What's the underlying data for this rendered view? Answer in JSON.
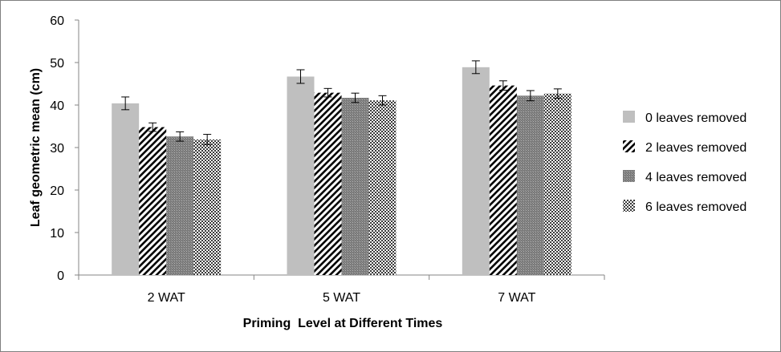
{
  "chart_data": {
    "type": "bar",
    "title": "",
    "xlabel": "Priming  Level at Different Times",
    "ylabel": "Leaf geometric mean (cm)",
    "categories": [
      "2 WAT",
      "5 WAT",
      "7 WAT"
    ],
    "ylim": [
      0,
      60
    ],
    "yticks": [
      0,
      10,
      20,
      30,
      40,
      50,
      60
    ],
    "grid": false,
    "legend_position": "right",
    "series": [
      {
        "name": "0 leaves removed",
        "values": [
          40.4,
          46.7,
          48.9
        ],
        "errors": [
          1.5,
          1.6,
          1.5
        ],
        "pattern": "solid",
        "color": "#bfbfbf"
      },
      {
        "name": "2 leaves removed",
        "values": [
          34.8,
          42.9,
          44.6
        ],
        "errors": [
          1.0,
          1.0,
          1.1
        ],
        "pattern": "diagonal",
        "color": "#000000"
      },
      {
        "name": "4 leaves removed",
        "values": [
          32.6,
          41.7,
          42.2
        ],
        "errors": [
          1.1,
          1.1,
          1.2
        ],
        "pattern": "grid",
        "color": "#8c8c8c"
      },
      {
        "name": "6 leaves removed",
        "values": [
          31.9,
          41.1,
          42.7
        ],
        "errors": [
          1.2,
          1.1,
          1.1
        ],
        "pattern": "checker",
        "color": "#5a5a5a"
      }
    ]
  }
}
